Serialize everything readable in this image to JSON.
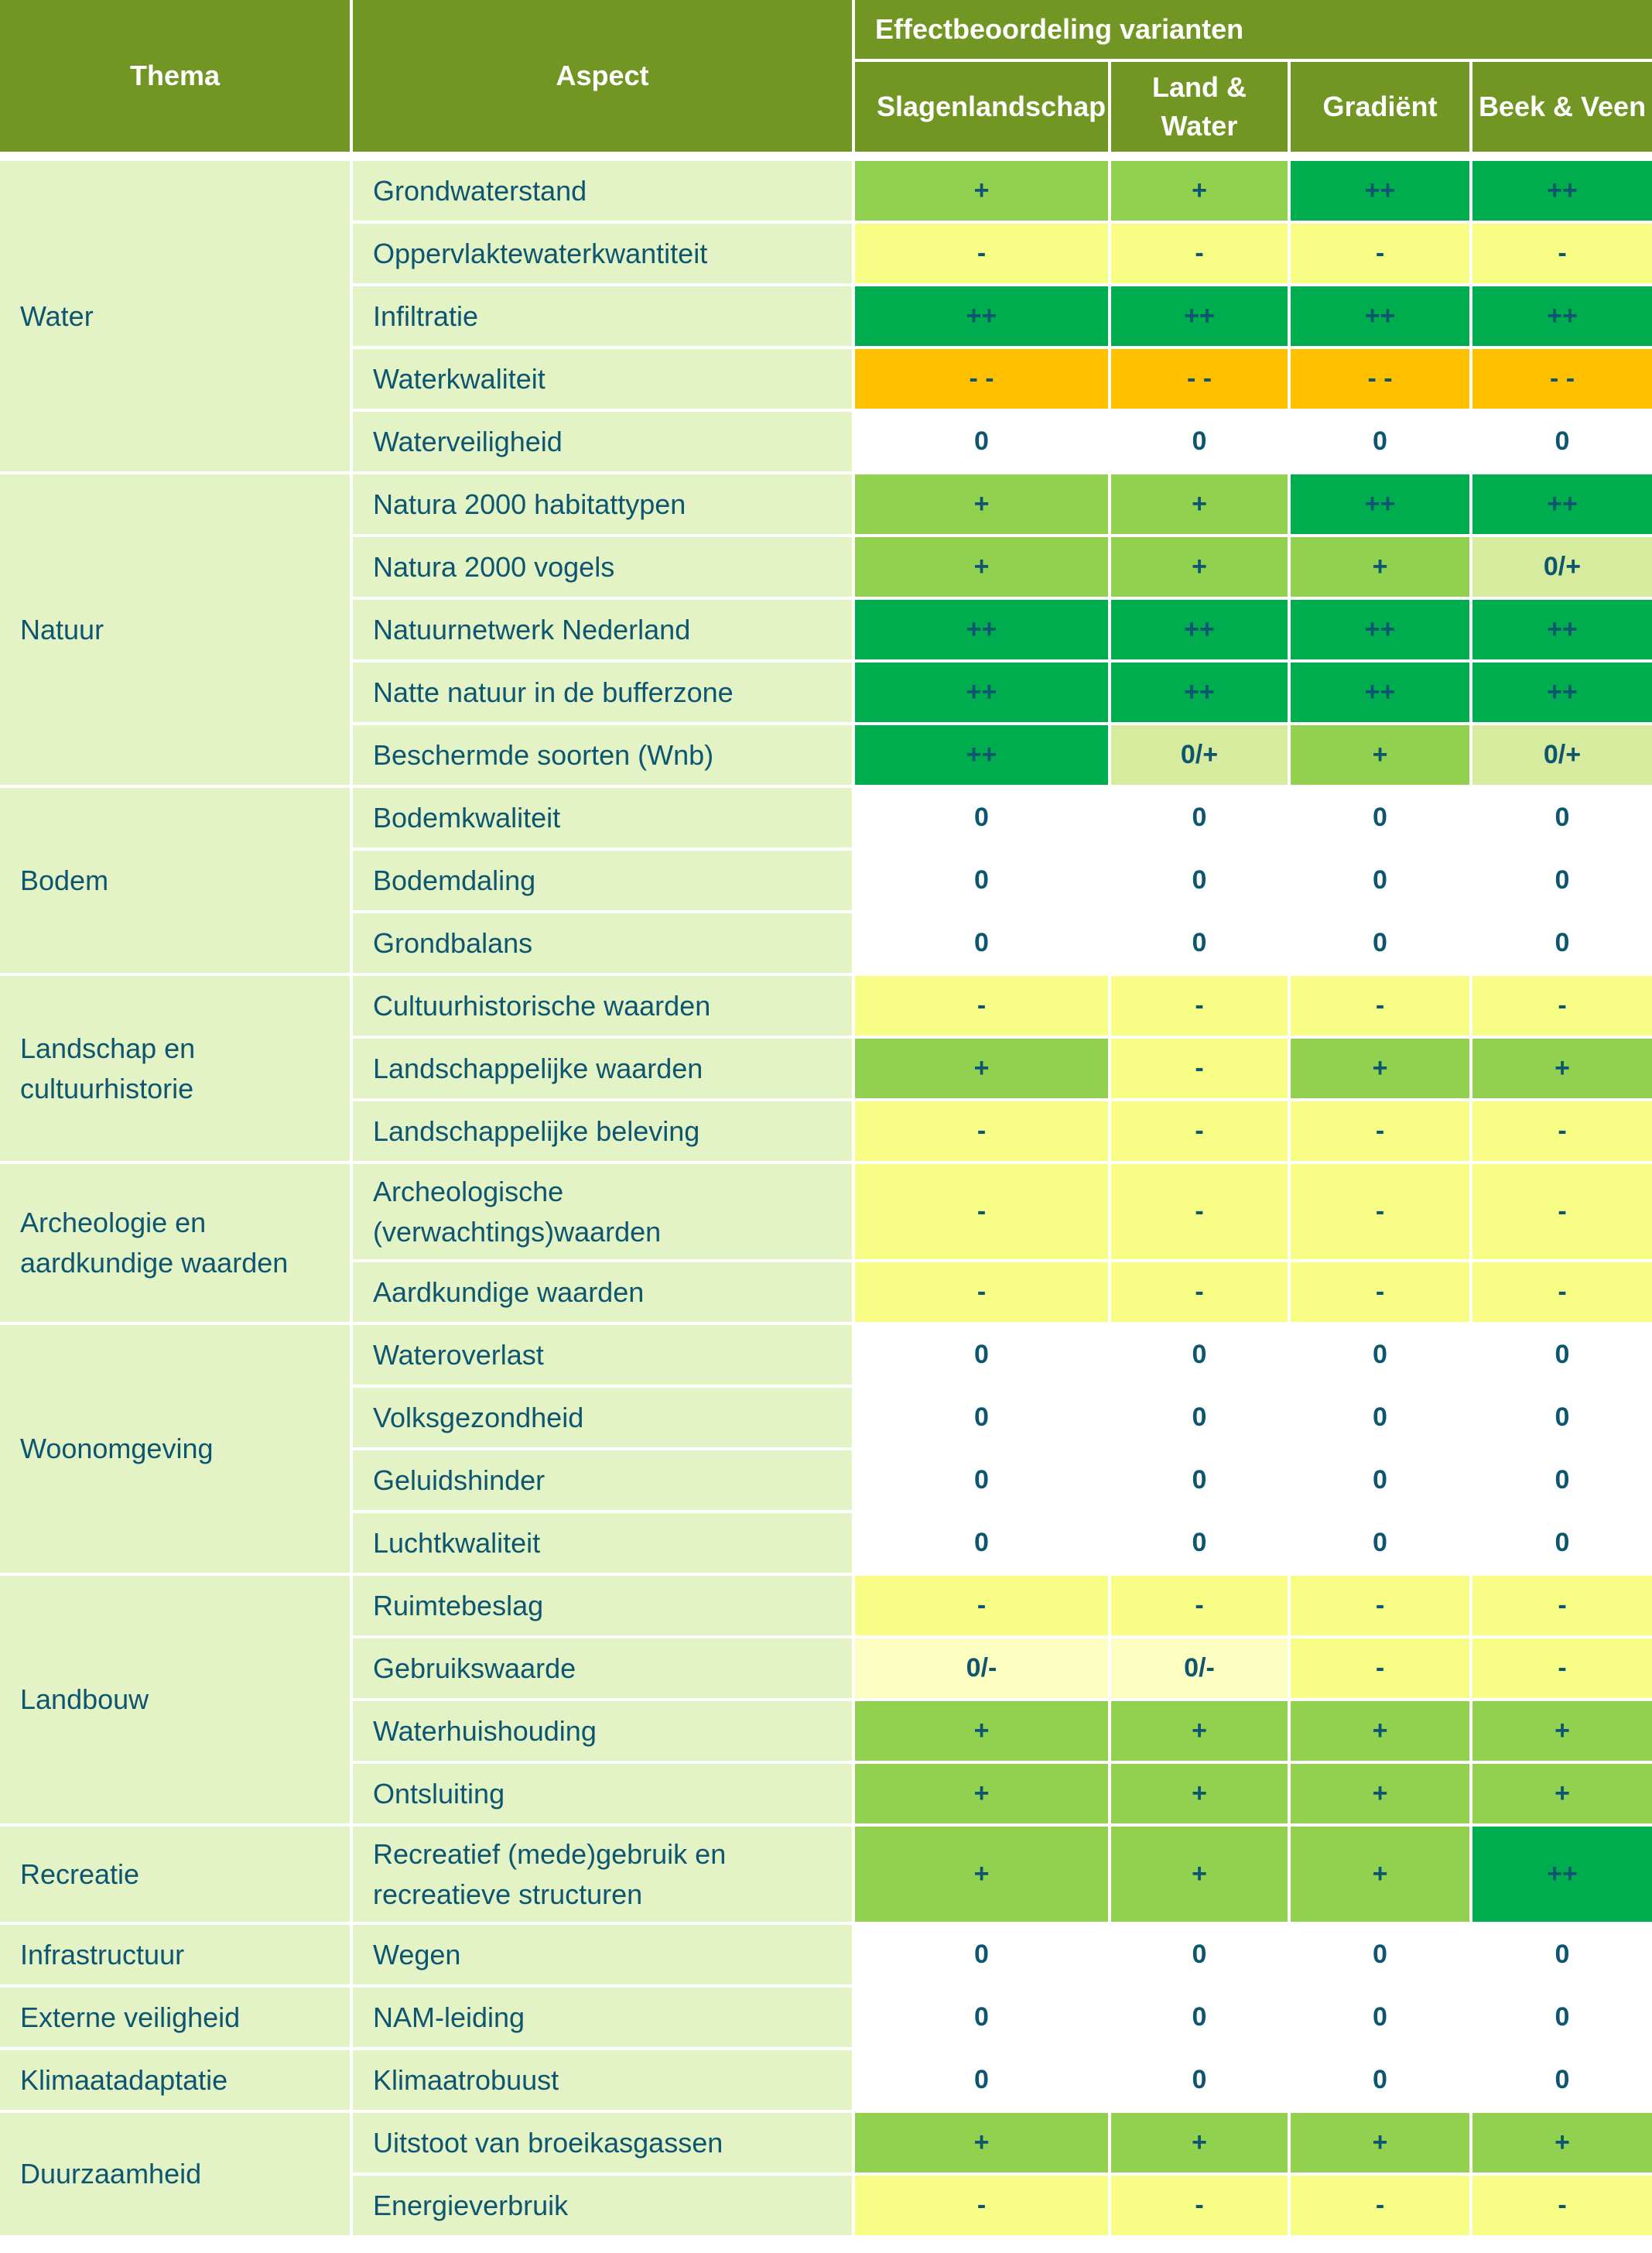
{
  "header": {
    "thema": "Thema",
    "aspect": "Aspect",
    "group": "Effectbeoordeling varianten",
    "variants": [
      "Slagenlandschap",
      "Land & Water",
      "Gradiënt",
      "Beek & Veen"
    ]
  },
  "colors": {
    "++": "#00ad4e",
    "+": "#92d050",
    "0/+": "#d6eb9e",
    "0": "#ffffff",
    "0/-": "#fbfdc1",
    "-": "#f8fd85",
    "- -": "#ffc000",
    "header": "#729624",
    "label_bg": "#e4f3c6",
    "text": "#0e5670"
  },
  "themes": [
    {
      "name": "Water",
      "rows": [
        {
          "aspect": "Grondwaterstand",
          "scores": [
            "+",
            "+",
            "++",
            "++"
          ]
        },
        {
          "aspect": "Oppervlaktewaterkwantiteit",
          "scores": [
            "-",
            "-",
            "-",
            "-"
          ]
        },
        {
          "aspect": "Infiltratie",
          "scores": [
            "++",
            "++",
            "++",
            "++"
          ]
        },
        {
          "aspect": "Waterkwaliteit",
          "scores": [
            "- -",
            "- -",
            "- -",
            "- -"
          ]
        },
        {
          "aspect": "Waterveiligheid",
          "scores": [
            "0",
            "0",
            "0",
            "0"
          ]
        }
      ]
    },
    {
      "name": "Natuur",
      "rows": [
        {
          "aspect": "Natura 2000 habitattypen",
          "scores": [
            "+",
            "+",
            "++",
            "++"
          ]
        },
        {
          "aspect": "Natura 2000 vogels",
          "scores": [
            "+",
            "+",
            "+",
            "0/+"
          ]
        },
        {
          "aspect": "Natuurnetwerk Nederland",
          "scores": [
            "++",
            "++",
            "++",
            "++"
          ]
        },
        {
          "aspect": "Natte natuur in de bufferzone",
          "scores": [
            "++",
            "++",
            "++",
            "++"
          ]
        },
        {
          "aspect": "Beschermde soorten (Wnb)",
          "scores": [
            "++",
            "0/+",
            "+",
            "0/+"
          ]
        }
      ]
    },
    {
      "name": "Bodem",
      "rows": [
        {
          "aspect": "Bodemkwaliteit",
          "scores": [
            "0",
            "0",
            "0",
            "0"
          ]
        },
        {
          "aspect": "Bodemdaling",
          "scores": [
            "0",
            "0",
            "0",
            "0"
          ]
        },
        {
          "aspect": "Grondbalans",
          "scores": [
            "0",
            "0",
            "0",
            "0"
          ]
        }
      ]
    },
    {
      "name": "Landschap en cultuurhistorie",
      "rows": [
        {
          "aspect": "Cultuurhistorische waarden",
          "scores": [
            "-",
            "-",
            "-",
            "-"
          ]
        },
        {
          "aspect": "Landschappelijke waarden",
          "scores": [
            "+",
            "-",
            "+",
            "+"
          ]
        },
        {
          "aspect": "Landschappelijke beleving",
          "scores": [
            "-",
            "-",
            "-",
            "-"
          ]
        }
      ]
    },
    {
      "name": "Archeologie en aardkundige waarden",
      "rows": [
        {
          "aspect": "Archeologische (verwachtings)waarden",
          "scores": [
            "-",
            "-",
            "-",
            "-"
          ],
          "tall": true
        },
        {
          "aspect": "Aardkundige waarden",
          "scores": [
            "-",
            "-",
            "-",
            "-"
          ]
        }
      ]
    },
    {
      "name": "Woonomgeving",
      "rows": [
        {
          "aspect": "Wateroverlast",
          "scores": [
            "0",
            "0",
            "0",
            "0"
          ]
        },
        {
          "aspect": "Volksgezondheid",
          "scores": [
            "0",
            "0",
            "0",
            "0"
          ]
        },
        {
          "aspect": "Geluidshinder",
          "scores": [
            "0",
            "0",
            "0",
            "0"
          ]
        },
        {
          "aspect": "Luchtkwaliteit",
          "scores": [
            "0",
            "0",
            "0",
            "0"
          ]
        }
      ]
    },
    {
      "name": "Landbouw",
      "rows": [
        {
          "aspect": "Ruimtebeslag",
          "scores": [
            "-",
            "-",
            "-",
            "-"
          ]
        },
        {
          "aspect": "Gebruikswaarde",
          "scores": [
            "0/-",
            "0/-",
            "-",
            "-"
          ]
        },
        {
          "aspect": "Waterhuishouding",
          "scores": [
            "+",
            "+",
            "+",
            "+"
          ]
        },
        {
          "aspect": "Ontsluiting",
          "scores": [
            "+",
            "+",
            "+",
            "+"
          ]
        }
      ]
    },
    {
      "name": "Recreatie",
      "rows": [
        {
          "aspect": "Recreatief (mede)gebruik en recreatieve structuren",
          "scores": [
            "+",
            "+",
            "+",
            "++"
          ],
          "tall": true
        }
      ]
    },
    {
      "name": "Infrastructuur",
      "rows": [
        {
          "aspect": "Wegen",
          "scores": [
            "0",
            "0",
            "0",
            "0"
          ]
        }
      ]
    },
    {
      "name": "Externe veiligheid",
      "rows": [
        {
          "aspect": "NAM-leiding",
          "scores": [
            "0",
            "0",
            "0",
            "0"
          ]
        }
      ]
    },
    {
      "name": "Klimaatadaptatie",
      "rows": [
        {
          "aspect": "Klimaatrobuust",
          "scores": [
            "0",
            "0",
            "0",
            "0"
          ]
        }
      ]
    },
    {
      "name": "Duurzaamheid",
      "rows": [
        {
          "aspect": "Uitstoot van broeikasgassen",
          "scores": [
            "+",
            "+",
            "+",
            "+"
          ]
        },
        {
          "aspect": "Energieverbruik",
          "scores": [
            "-",
            "-",
            "-",
            "-"
          ]
        }
      ]
    }
  ]
}
